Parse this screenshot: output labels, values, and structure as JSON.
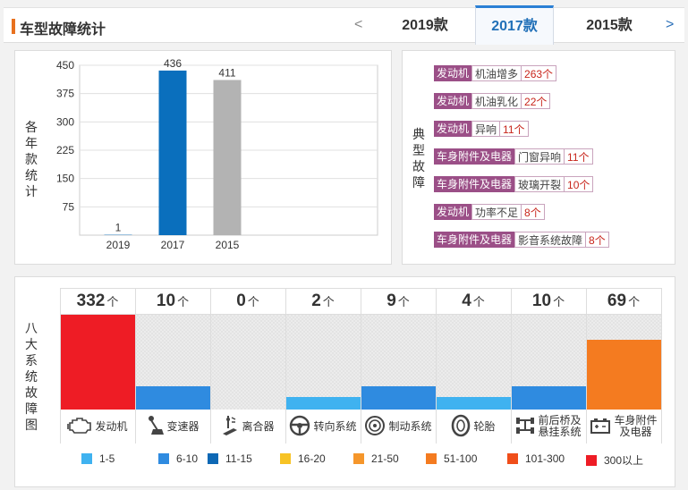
{
  "header": {
    "title": "车型故障统计",
    "prev_arrow": "<",
    "next_arrow": ">",
    "tabs": [
      {
        "label": "2019款",
        "active": false
      },
      {
        "label": "2017款",
        "active": true
      },
      {
        "label": "2015款",
        "active": false
      }
    ]
  },
  "chart": {
    "side_label": [
      "各",
      "年",
      "款",
      "统",
      "计"
    ]
  },
  "chart_data": {
    "type": "bar",
    "title": "",
    "xlabel": "",
    "ylabel": "各年款统计",
    "categories": [
      "2019",
      "2017",
      "2015"
    ],
    "values": [
      1,
      436,
      411
    ],
    "bar_colors": [
      "#1a75bc",
      "#0a6fbd",
      "#b3b3b3"
    ],
    "y_ticks": [
      75,
      150,
      225,
      300,
      375,
      450
    ],
    "ylim": [
      0,
      450
    ],
    "grid": true
  },
  "faults": {
    "side_label": [
      "典",
      "型",
      "故",
      "障"
    ],
    "items": [
      {
        "system": "发动机",
        "desc": "机油增多",
        "count": "263个"
      },
      {
        "system": "发动机",
        "desc": "机油乳化",
        "count": "22个"
      },
      {
        "system": "发动机",
        "desc": "异响",
        "count": "11个"
      },
      {
        "system": "车身附件及电器",
        "desc": "门窗异响",
        "count": "11个"
      },
      {
        "system": "车身附件及电器",
        "desc": "玻璃开裂",
        "count": "10个"
      },
      {
        "system": "发动机",
        "desc": "功率不足",
        "count": "8个"
      },
      {
        "system": "车身附件及电器",
        "desc": "影音系统故障",
        "count": "8个"
      }
    ]
  },
  "systems": {
    "side_label": [
      "八",
      "大",
      "系",
      "统",
      "故",
      "障",
      "图"
    ],
    "unit": "个",
    "max_scale": 332,
    "items": [
      {
        "name": "发动机",
        "name2": "",
        "count": "332",
        "value": 332,
        "color": "#ee1c25",
        "icon": "engine-icon"
      },
      {
        "name": "变速器",
        "name2": "",
        "count": "10",
        "value": 10,
        "color": "#2f8be0",
        "icon": "gear-shift-icon"
      },
      {
        "name": "离合器",
        "name2": "",
        "count": "0",
        "value": 0,
        "color": "#3fb2f0",
        "icon": "clutch-pedal-icon"
      },
      {
        "name": "转向系统",
        "name2": "",
        "count": "2",
        "value": 2,
        "color": "#3fb2f0",
        "icon": "steering-wheel-icon"
      },
      {
        "name": "制动系统",
        "name2": "",
        "count": "9",
        "value": 9,
        "color": "#2f8be0",
        "icon": "brake-disc-icon"
      },
      {
        "name": "轮胎",
        "name2": "",
        "count": "4",
        "value": 4,
        "color": "#3fb2f0",
        "icon": "tire-icon"
      },
      {
        "name": "前后桥及",
        "name2": "悬挂系统",
        "count": "10",
        "value": 10,
        "color": "#2f8be0",
        "icon": "axle-icon"
      },
      {
        "name": "车身附件",
        "name2": "及电器",
        "count": "69",
        "value": 69,
        "color": "#f47b20",
        "icon": "battery-icon"
      }
    ]
  },
  "legend": [
    {
      "label": "1-5",
      "color": "#3fb2f0"
    },
    {
      "label": "6-10",
      "color": "#2f8be0"
    },
    {
      "label": "11-15",
      "color": "#0d68b5"
    },
    {
      "label": "16-20",
      "color": "#f7c325"
    },
    {
      "label": "21-50",
      "color": "#f5962b"
    },
    {
      "label": "51-100",
      "color": "#f47b20"
    },
    {
      "label": "101-300",
      "color": "#f04e1a"
    },
    {
      "label": "300以上",
      "color": "#ee1c25"
    }
  ]
}
